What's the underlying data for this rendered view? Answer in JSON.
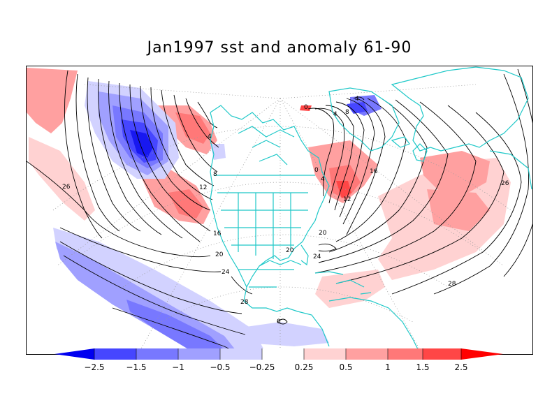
{
  "title": "Jan1997 sst and anomaly 61-90",
  "colors": {
    "coast": "#1ec8c8",
    "grid": "#9a9a9a",
    "contour": "#000000",
    "shade_scale": [
      "#0000f0",
      "#4646ff",
      "#7878ff",
      "#a0a0ff",
      "#d2d2ff",
      "#ffffff",
      "#ffd2d2",
      "#ffa0a0",
      "#ff7878",
      "#ff4646",
      "#ff0000"
    ]
  },
  "colorbar": {
    "labels": [
      "−2.5",
      "−1.5",
      "−1",
      "−0.5",
      "−0.25",
      "0.25",
      "0.5",
      "1",
      "1.5",
      "2.5"
    ]
  },
  "contour_labels": [
    "26",
    "4",
    "8",
    "12",
    "16",
    "20",
    "24",
    "28",
    "4",
    "0",
    "4",
    "8",
    "0",
    "4",
    "16",
    "12",
    "20",
    "24",
    "26",
    "28",
    "20",
    "0"
  ]
}
